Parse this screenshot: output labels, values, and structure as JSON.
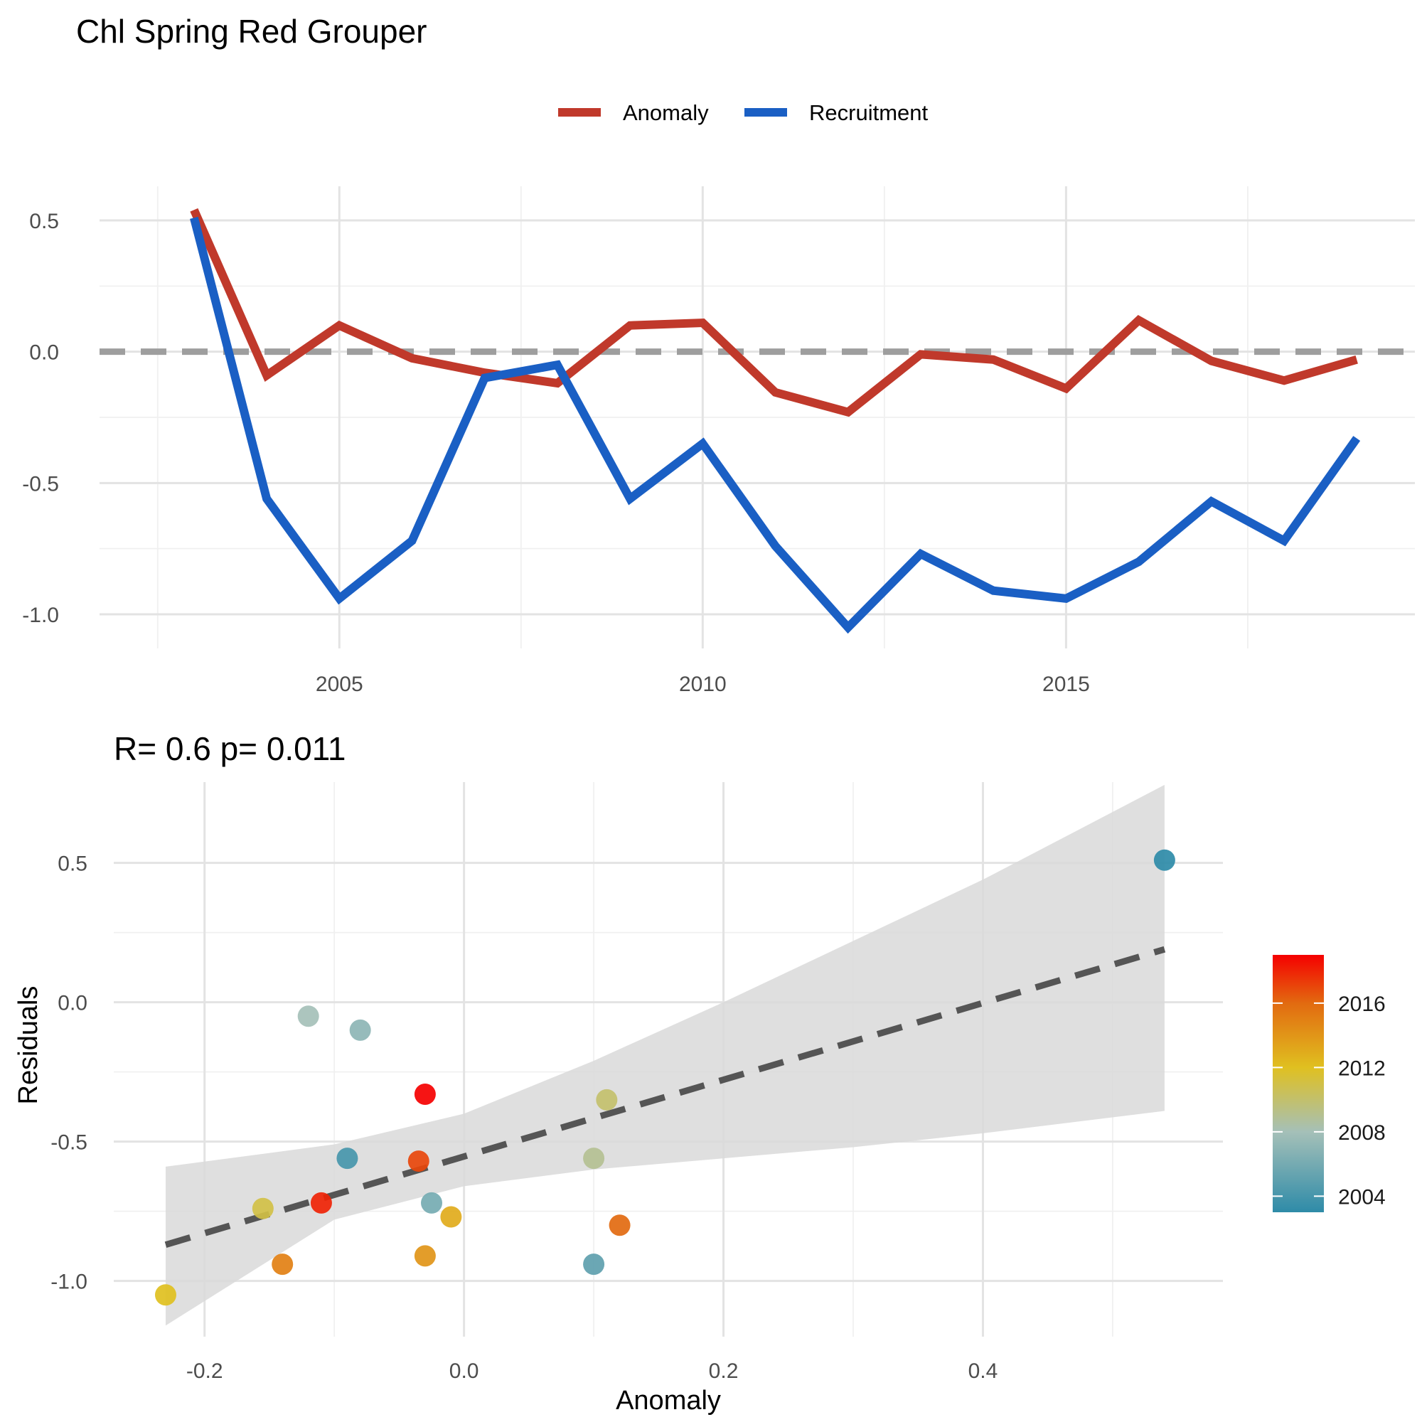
{
  "title": "Chl Spring Red Grouper",
  "chart_data": [
    {
      "type": "line",
      "legend_position": "top",
      "x": [
        2003,
        2004,
        2005,
        2006,
        2007,
        2008,
        2009,
        2010,
        2011,
        2012,
        2013,
        2014,
        2015,
        2016,
        2017,
        2018,
        2019
      ],
      "series": [
        {
          "name": "Anomaly",
          "color": "#c0392b",
          "values": [
            0.54,
            -0.09,
            0.1,
            -0.025,
            -0.08,
            -0.12,
            0.1,
            0.11,
            -0.155,
            -0.23,
            -0.01,
            -0.03,
            -0.14,
            0.12,
            -0.035,
            -0.11,
            -0.03
          ]
        },
        {
          "name": "Recruitment",
          "color": "#1a5fc4",
          "values": [
            0.51,
            -0.56,
            -0.94,
            -0.72,
            -0.1,
            -0.05,
            -0.56,
            -0.35,
            -0.74,
            -1.05,
            -0.77,
            -0.91,
            -0.94,
            -0.8,
            -0.57,
            -0.72,
            -0.33
          ]
        }
      ],
      "reference_line": 0,
      "xlim": [
        2001.7,
        2019.8
      ],
      "ylim": [
        -1.13,
        0.63
      ],
      "x_ticks": [
        2005,
        2010,
        2015
      ],
      "y_ticks": [
        0.5,
        0.0,
        -0.5,
        -1.0
      ],
      "x_tick_labels": [
        "2005",
        "2010",
        "2015"
      ],
      "y_tick_labels": [
        "0.5",
        "0.0",
        "-0.5",
        "-1.0"
      ],
      "grid": true
    },
    {
      "type": "scatter",
      "subtitle": "R= 0.6  p= 0.011",
      "xlabel": "Anomaly",
      "ylabel": "Residuals",
      "xlim": [
        -0.27,
        0.585
      ],
      "ylim": [
        -1.2,
        0.79
      ],
      "x_ticks": [
        -0.2,
        0.0,
        0.2,
        0.4
      ],
      "y_ticks": [
        0.5,
        0.0,
        -0.5,
        -1.0
      ],
      "x_tick_labels": [
        "-0.2",
        "0.0",
        "0.2",
        "0.4"
      ],
      "y_tick_labels": [
        "0.5",
        "0.0",
        "-0.5",
        "-1.0"
      ],
      "grid": true,
      "points": [
        {
          "x": 0.54,
          "y": 0.51,
          "year": 2003
        },
        {
          "x": -0.09,
          "y": -0.56,
          "year": 2004
        },
        {
          "x": 0.1,
          "y": -0.94,
          "year": 2005
        },
        {
          "x": -0.025,
          "y": -0.72,
          "year": 2006
        },
        {
          "x": -0.08,
          "y": -0.1,
          "year": 2007
        },
        {
          "x": -0.12,
          "y": -0.05,
          "year": 2008
        },
        {
          "x": 0.1,
          "y": -0.56,
          "year": 2009
        },
        {
          "x": 0.11,
          "y": -0.35,
          "year": 2010
        },
        {
          "x": -0.155,
          "y": -0.74,
          "year": 2011
        },
        {
          "x": -0.23,
          "y": -1.05,
          "year": 2012
        },
        {
          "x": -0.01,
          "y": -0.77,
          "year": 2013
        },
        {
          "x": -0.03,
          "y": -0.91,
          "year": 2014
        },
        {
          "x": -0.14,
          "y": -0.94,
          "year": 2015
        },
        {
          "x": 0.12,
          "y": -0.8,
          "year": 2016
        },
        {
          "x": -0.035,
          "y": -0.57,
          "year": 2017
        },
        {
          "x": -0.11,
          "y": -0.72,
          "year": 2018
        },
        {
          "x": -0.03,
          "y": -0.33,
          "year": 2019
        }
      ],
      "fit_line": {
        "x": [
          -0.23,
          0.54
        ],
        "y": [
          -0.87,
          0.19
        ],
        "style": "dashed",
        "color": "#555555"
      },
      "confidence_band": {
        "x": [
          -0.23,
          -0.1,
          0.0,
          0.1,
          0.2,
          0.3,
          0.4,
          0.54
        ],
        "lower": [
          -1.16,
          -0.78,
          -0.66,
          -0.6,
          -0.56,
          -0.52,
          -0.47,
          -0.39
        ],
        "upper": [
          -0.59,
          -0.51,
          -0.4,
          -0.21,
          0.0,
          0.22,
          0.44,
          0.78
        ],
        "color": "#d9d9d9"
      },
      "colorbar": {
        "title": "",
        "range": [
          2003,
          2019
        ],
        "ticks": [
          2004,
          2008,
          2012,
          2016
        ],
        "tick_labels": [
          "2004",
          "2008",
          "2012",
          "2016"
        ],
        "stops": [
          {
            "v": 2003,
            "color": "#2e8ba8"
          },
          {
            "v": 2008,
            "color": "#a5c0b8"
          },
          {
            "v": 2012,
            "color": "#e0c020"
          },
          {
            "v": 2016,
            "color": "#e26a10"
          },
          {
            "v": 2019,
            "color": "#f50000"
          }
        ]
      }
    }
  ]
}
